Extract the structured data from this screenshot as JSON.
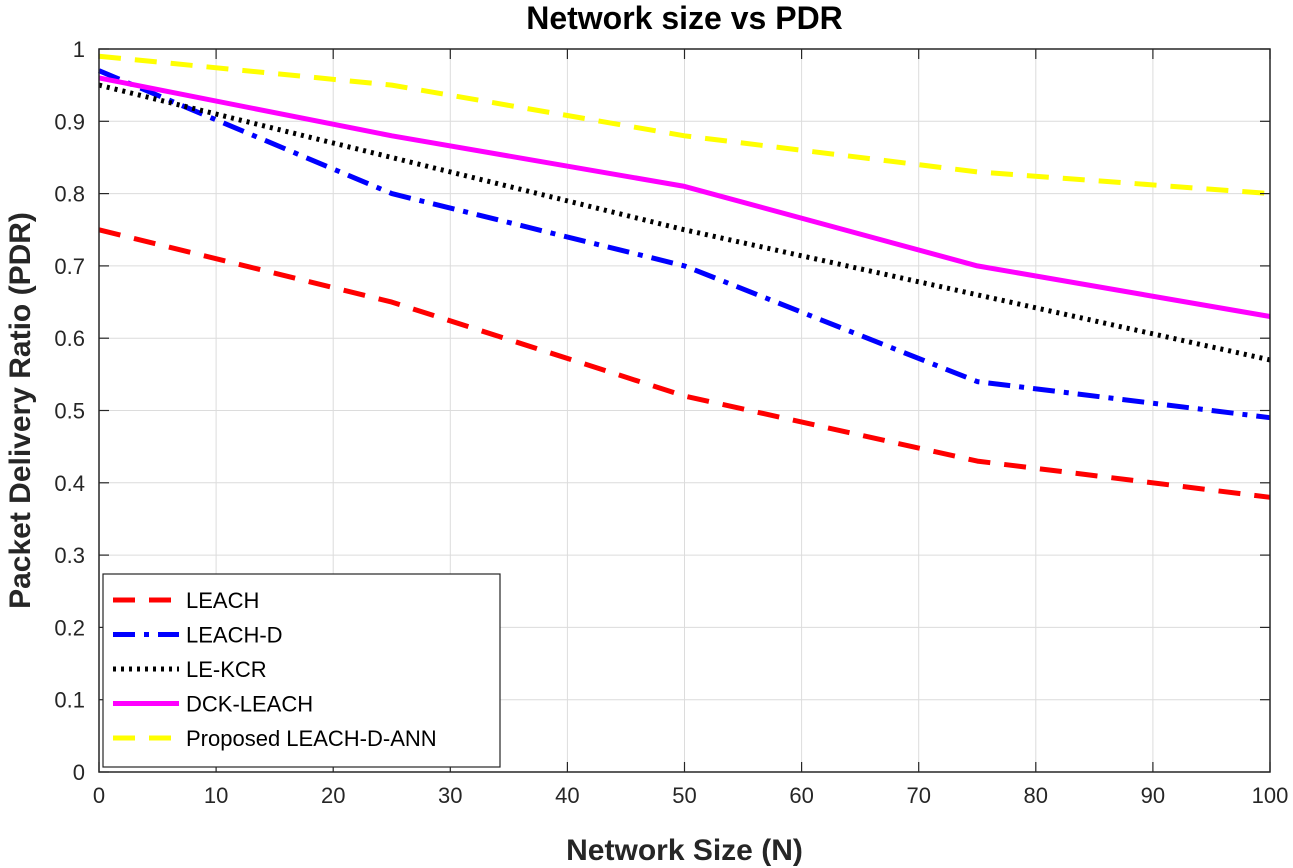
{
  "chart_data": {
    "type": "line",
    "title": "Network size vs PDR",
    "xlabel": "Network Size (N)",
    "ylabel": "Packet Delivery Ratio (PDR)",
    "xlim": [
      0,
      100
    ],
    "ylim": [
      0,
      1
    ],
    "xticks": [
      "0",
      "10",
      "20",
      "30",
      "40",
      "50",
      "60",
      "70",
      "80",
      "90",
      "100"
    ],
    "yticks": [
      "0",
      "0.1",
      "0.2",
      "0.3",
      "0.4",
      "0.5",
      "0.6",
      "0.7",
      "0.8",
      "0.9",
      "1"
    ],
    "grid": true,
    "legend_position": "bottom-left",
    "x": [
      0,
      25,
      50,
      75,
      100
    ],
    "series": [
      {
        "name": "LEACH",
        "values": [
          0.75,
          0.65,
          0.52,
          0.43,
          0.38
        ],
        "color": "#ff0000",
        "style": "dashed"
      },
      {
        "name": "LEACH-D",
        "values": [
          0.97,
          0.8,
          0.7,
          0.54,
          0.49
        ],
        "color": "#0000ff",
        "style": "dashdot"
      },
      {
        "name": "LE-KCR",
        "values": [
          0.95,
          0.85,
          0.75,
          0.66,
          0.57
        ],
        "color": "#000000",
        "style": "dotted"
      },
      {
        "name": "DCK-LEACH",
        "values": [
          0.96,
          0.88,
          0.81,
          0.7,
          0.63
        ],
        "color": "#ff00ff",
        "style": "solid"
      },
      {
        "name": "Proposed LEACH-D-ANN",
        "values": [
          0.99,
          0.95,
          0.88,
          0.83,
          0.8
        ],
        "color": "#ffff00",
        "style": "dashed"
      }
    ]
  }
}
